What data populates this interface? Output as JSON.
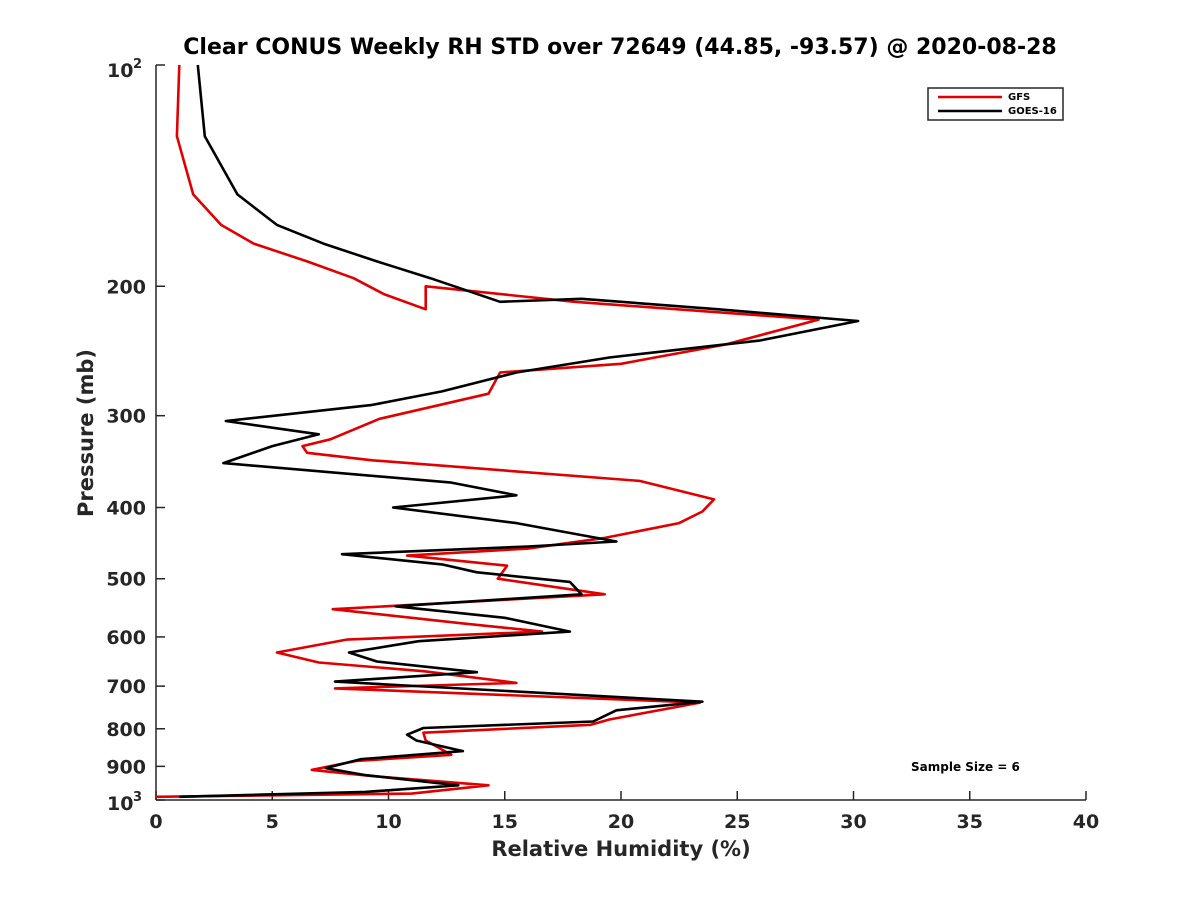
{
  "chart_data": {
    "type": "line",
    "title": "Clear CONUS Weekly RH STD over 72649 (44.85, -93.57) @ 2020-08-28",
    "xlabel": "Relative Humidity (%)",
    "ylabel": "Pressure (mb)",
    "xlim": [
      0,
      40
    ],
    "ylim": [
      100,
      1000
    ],
    "yscale": "log",
    "y_reversed": true,
    "x_ticks": [
      0,
      5,
      10,
      15,
      20,
      25,
      30,
      35,
      40
    ],
    "x_tick_labels": [
      "0",
      "5",
      "10",
      "15",
      "20",
      "25",
      "30",
      "35",
      "40"
    ],
    "y_ticks": [
      200,
      300,
      400,
      500,
      600,
      700,
      800,
      900
    ],
    "y_tick_labels": [
      "200",
      "300",
      "400",
      "500",
      "600",
      "700",
      "800",
      "900"
    ],
    "y_end_labels": {
      "top": {
        "base": "10",
        "exp": "2",
        "value": 100
      },
      "bottom": {
        "base": "10",
        "exp": "3",
        "value": 1000
      }
    },
    "grid": false,
    "legend_position": "top-right",
    "annotation": "Sample Size = 6",
    "series": [
      {
        "name": "GFS",
        "color": "#e00000",
        "points": [
          [
            1.0,
            100
          ],
          [
            0.9,
            125
          ],
          [
            1.6,
            150
          ],
          [
            2.8,
            165
          ],
          [
            4.2,
            175
          ],
          [
            6.5,
            185
          ],
          [
            8.5,
            195
          ],
          [
            9.8,
            205
          ],
          [
            11.6,
            215
          ],
          [
            11.6,
            200
          ],
          [
            18.0,
            210
          ],
          [
            28.5,
            222
          ],
          [
            24.5,
            240
          ],
          [
            20.0,
            255
          ],
          [
            14.8,
            262
          ],
          [
            14.3,
            280
          ],
          [
            9.6,
            303
          ],
          [
            7.5,
            323
          ],
          [
            6.3,
            330
          ],
          [
            6.5,
            337
          ],
          [
            9.3,
            345
          ],
          [
            20.8,
            368
          ],
          [
            24.0,
            390
          ],
          [
            23.5,
            405
          ],
          [
            22.5,
            420
          ],
          [
            19.3,
            440
          ],
          [
            16.0,
            455
          ],
          [
            10.8,
            465
          ],
          [
            15.1,
            480
          ],
          [
            14.7,
            500
          ],
          [
            19.3,
            525
          ],
          [
            7.6,
            550
          ],
          [
            13.2,
            575
          ],
          [
            16.6,
            590
          ],
          [
            8.2,
            605
          ],
          [
            5.2,
            630
          ],
          [
            7.0,
            650
          ],
          [
            11.5,
            668
          ],
          [
            15.5,
            693
          ],
          [
            7.7,
            705
          ],
          [
            23.4,
            737
          ],
          [
            19.5,
            777
          ],
          [
            18.7,
            790
          ],
          [
            11.5,
            810
          ],
          [
            11.6,
            830
          ],
          [
            12.7,
            868
          ],
          [
            8.6,
            885
          ],
          [
            6.7,
            910
          ],
          [
            9.3,
            928
          ],
          [
            14.3,
            955
          ],
          [
            11.0,
            980
          ],
          [
            0.0,
            990
          ]
        ]
      },
      {
        "name": "GOES-16",
        "color": "#000000",
        "points": [
          [
            1.8,
            100
          ],
          [
            2.1,
            125
          ],
          [
            3.5,
            150
          ],
          [
            5.2,
            165
          ],
          [
            7.2,
            175
          ],
          [
            9.5,
            185
          ],
          [
            11.8,
            195
          ],
          [
            14.8,
            210
          ],
          [
            18.3,
            208
          ],
          [
            24.2,
            215
          ],
          [
            30.2,
            223
          ],
          [
            26.0,
            237
          ],
          [
            19.5,
            250
          ],
          [
            15.5,
            262
          ],
          [
            12.3,
            278
          ],
          [
            9.3,
            290
          ],
          [
            3.0,
            305
          ],
          [
            7.0,
            318
          ],
          [
            5.0,
            330
          ],
          [
            2.9,
            348
          ],
          [
            12.7,
            370
          ],
          [
            15.5,
            385
          ],
          [
            10.2,
            400
          ],
          [
            15.5,
            420
          ],
          [
            19.8,
            445
          ],
          [
            16.0,
            452
          ],
          [
            8.0,
            463
          ],
          [
            12.3,
            478
          ],
          [
            13.8,
            490
          ],
          [
            17.8,
            505
          ],
          [
            18.3,
            525
          ],
          [
            10.3,
            545
          ],
          [
            15.0,
            565
          ],
          [
            17.8,
            590
          ],
          [
            11.3,
            608
          ],
          [
            8.3,
            630
          ],
          [
            9.5,
            648
          ],
          [
            13.8,
            670
          ],
          [
            7.7,
            690
          ],
          [
            23.5,
            735
          ],
          [
            19.8,
            755
          ],
          [
            18.8,
            782
          ],
          [
            11.5,
            798
          ],
          [
            10.8,
            815
          ],
          [
            11.2,
            830
          ],
          [
            13.2,
            858
          ],
          [
            8.8,
            880
          ],
          [
            7.3,
            905
          ],
          [
            9.0,
            925
          ],
          [
            13.0,
            955
          ],
          [
            9.0,
            975
          ],
          [
            1.0,
            990
          ]
        ]
      }
    ]
  }
}
